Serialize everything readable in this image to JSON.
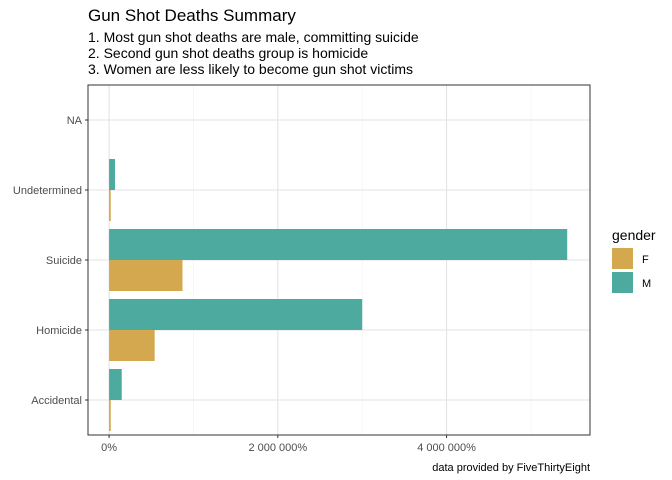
{
  "chart_data": {
    "type": "bar",
    "orientation": "horizontal",
    "title": "Gun Shot Deaths Summary",
    "subtitle": [
      "1. Most gun shot deaths are male, committing suicide",
      "2. Second gun shot deaths group is homicide",
      "3. Women are less likely to become gun shot victims"
    ],
    "caption": "data provided by FiveThirtyEight",
    "categories": [
      "Accidental",
      "Homicide",
      "Suicide",
      "Undetermined",
      "NA"
    ],
    "series": [
      {
        "name": "F",
        "color": "#D4A84F",
        "values": [
          20000,
          540000,
          870000,
          20000,
          0
        ]
      },
      {
        "name": "M",
        "color": "#4DAA9E",
        "values": [
          150000,
          3000000,
          5430000,
          70000,
          0
        ]
      }
    ],
    "xlim": [
      -250000,
      5700000
    ],
    "x_ticks": [
      0,
      2000000,
      4000000
    ],
    "x_tick_labels": [
      "0%",
      "2 000 000%",
      "4 000 000%"
    ],
    "legend": {
      "title": "gender",
      "position": "right"
    },
    "grid": true
  }
}
